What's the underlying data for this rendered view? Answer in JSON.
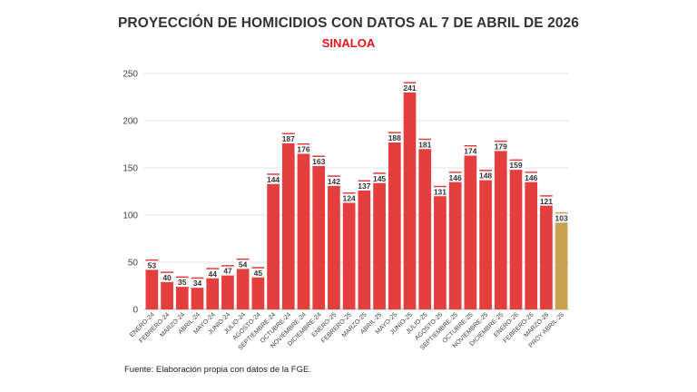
{
  "title": "PROYECCIÓN DE HOMICIDIOS CON DATOS AL 7 DE ABRIL DE 2026",
  "subtitle": "SINALOA",
  "source": "Fuente: Elaboración propia con datos de la FGE.",
  "colors": {
    "bar": "#e53e3e",
    "projection": "#c9a04e",
    "grid": "#e6e6e6",
    "axis_text": "#444444",
    "title_red": "#e5161b"
  },
  "chart_data": {
    "type": "bar",
    "title": "PROYECCIÓN DE HOMICIDIOS CON DATOS AL 7 DE ABRIL DE 2026",
    "subtitle": "SINALOA",
    "xlabel": "",
    "ylabel": "",
    "ylim": [
      0,
      250
    ],
    "yticks": [
      0,
      50,
      100,
      150,
      200,
      250
    ],
    "grid": true,
    "categories": [
      "ENERO-24",
      "FEBRERO-24",
      "MARZO-24",
      "ABRIL-24",
      "MAYO-24",
      "JUNIO-24",
      "JULIO-24",
      "AGOSTO-24",
      "SEPTIEMBRE-24",
      "OCTUBRE-24",
      "NOVIEMBRE-24",
      "DICIEMBRE-24",
      "ENERO-25",
      "FEBRERO-25",
      "MARZO-25",
      "ABRIL-25",
      "MAYO-25",
      "JUNIO-25",
      "JULIO-25",
      "AGOSTO-25",
      "SEPTIEMBRE-25",
      "OCTUBRE-25",
      "NOVIEMBRE-25",
      "DICIEMBRE-25",
      "ENERO-26",
      "FEBRERO-26",
      "MARZO-26",
      "PROY ABRIL-26"
    ],
    "values": [
      53,
      40,
      35,
      34,
      44,
      47,
      54,
      45,
      144,
      187,
      176,
      163,
      142,
      124,
      137,
      145,
      188,
      241,
      181,
      131,
      146,
      174,
      148,
      179,
      159,
      146,
      121,
      103
    ],
    "projected_index": 27
  }
}
